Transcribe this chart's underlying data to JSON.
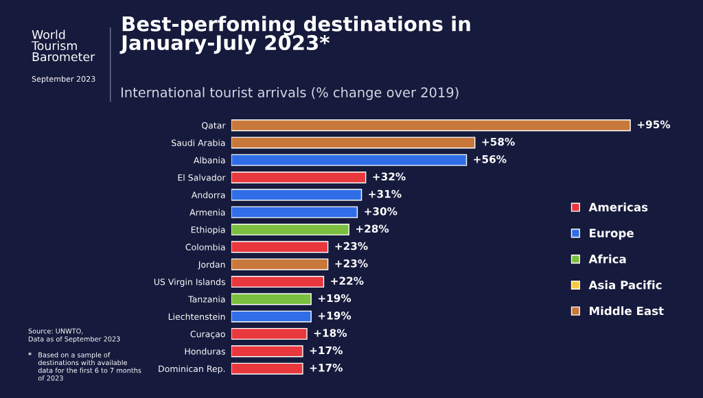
{
  "chart_data": {
    "type": "bar",
    "orientation": "horizontal",
    "title": "Best-perfoming destinations in\nJanuary-July 2023*",
    "subtitle": "International tourist arrivals (% change over 2019)",
    "categories": [
      "Qatar",
      "Saudi Arabia",
      "Albania",
      "El Salvador",
      "Andorra",
      "Armenia",
      "Ethiopia",
      "Colombia",
      "Jordan",
      "US Virgin Islands",
      "Tanzania",
      "Liechtenstein",
      "Curaçao",
      "Honduras",
      "Dominican Rep."
    ],
    "series": [
      {
        "name": "Americas",
        "color": "#e8383d",
        "values": [
          null,
          null,
          null,
          32,
          null,
          null,
          null,
          23,
          null,
          22,
          null,
          null,
          18,
          17,
          17
        ],
        "value_labels": [
          null,
          null,
          null,
          "+32%",
          null,
          null,
          null,
          "+23%",
          null,
          "+22%",
          null,
          null,
          "+18%",
          "+17%",
          "+17%"
        ]
      },
      {
        "name": "Europe",
        "color": "#2f6ee6",
        "values": [
          null,
          null,
          56,
          null,
          31,
          30,
          null,
          null,
          null,
          null,
          null,
          19,
          null,
          null,
          null
        ],
        "value_labels": [
          null,
          null,
          "+56%",
          null,
          "+31%",
          "+30%",
          null,
          null,
          null,
          null,
          null,
          "+19%",
          null,
          null,
          null
        ]
      },
      {
        "name": "Africa",
        "color": "#7bbf3f",
        "values": [
          null,
          null,
          null,
          null,
          null,
          null,
          28,
          null,
          null,
          null,
          19,
          null,
          null,
          null,
          null
        ],
        "value_labels": [
          null,
          null,
          null,
          null,
          null,
          null,
          "+28%",
          null,
          null,
          null,
          "+19%",
          null,
          null,
          null,
          null
        ]
      },
      {
        "name": "Asia Pacific",
        "color": "#f5ca3f",
        "values": [
          null,
          null,
          null,
          null,
          null,
          null,
          null,
          null,
          null,
          null,
          null,
          null,
          null,
          null,
          null
        ],
        "value_labels": [
          null,
          null,
          null,
          null,
          null,
          null,
          null,
          null,
          null,
          null,
          null,
          null,
          null,
          null,
          null
        ]
      },
      {
        "name": "Middle East",
        "color": "#c8783a",
        "values": [
          95,
          58,
          null,
          null,
          null,
          null,
          null,
          null,
          23,
          null,
          null,
          null,
          null,
          null,
          null
        ],
        "value_labels": [
          "+95%",
          "+58%",
          null,
          null,
          null,
          null,
          null,
          null,
          "+23%",
          null,
          null,
          null,
          null,
          null,
          null
        ]
      }
    ],
    "legend": "right",
    "annotations": [
      "World\nTourism\nBarometer",
      "September 2023",
      "Source: UNWTO,\nData as of September 2023",
      "*",
      "Based on a sample of\ndestinations with available\ndata for the first 6 to 7 months\nof 2023"
    ]
  }
}
